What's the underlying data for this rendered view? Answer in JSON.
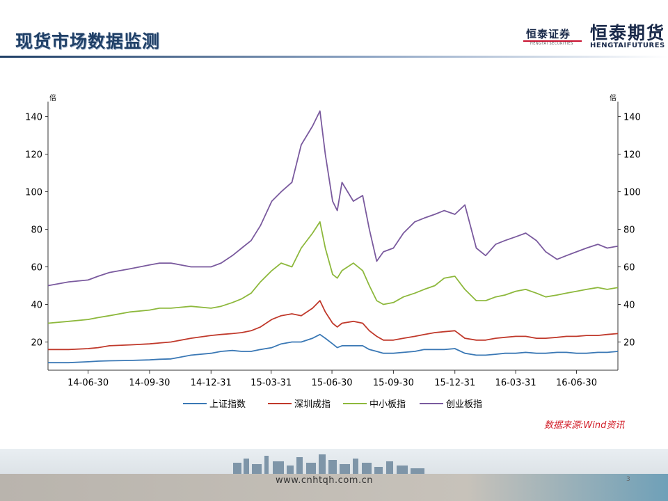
{
  "header": {
    "title": "现货市场数据监测",
    "logo_small_cn": "恒泰证券",
    "logo_small_en": "HENGTAI SECURITIES",
    "logo_large_cn": "恒泰期货",
    "logo_large_en": "HENGTAIFUTURES"
  },
  "footer": {
    "source": "数据来源:Wind资讯",
    "url": "www.cnhtqh.com.cn",
    "page_number": "3"
  },
  "colors": {
    "title": "#1f3f66",
    "source": "#d2202a"
  },
  "chart_data": {
    "type": "line",
    "title": "",
    "xlabel": "",
    "ylabel_left": "倍",
    "ylabel_right": "倍",
    "ylim": [
      5,
      148
    ],
    "yticks": [
      20,
      40,
      60,
      80,
      100,
      120,
      140
    ],
    "xlim": [
      "2014-05-01",
      "2016-08-31"
    ],
    "xticks": [
      "14-06-30",
      "14-09-30",
      "14-12-31",
      "15-03-31",
      "15-06-30",
      "15-09-30",
      "15-12-31",
      "16-03-31",
      "16-06-30"
    ],
    "grid": false,
    "legend_position": "bottom",
    "x": [
      "2014-05-01",
      "2014-06-01",
      "2014-06-30",
      "2014-07-15",
      "2014-08-01",
      "2014-09-01",
      "2014-09-30",
      "2014-10-15",
      "2014-11-01",
      "2014-12-01",
      "2014-12-31",
      "2015-01-15",
      "2015-02-01",
      "2015-02-15",
      "2015-03-01",
      "2015-03-15",
      "2015-04-01",
      "2015-04-15",
      "2015-05-01",
      "2015-05-15",
      "2015-06-01",
      "2015-06-12",
      "2015-06-20",
      "2015-07-01",
      "2015-07-08",
      "2015-07-15",
      "2015-08-01",
      "2015-08-15",
      "2015-08-25",
      "2015-09-05",
      "2015-09-15",
      "2015-09-30",
      "2015-10-15",
      "2015-11-01",
      "2015-11-15",
      "2015-12-01",
      "2015-12-15",
      "2015-12-31",
      "2016-01-15",
      "2016-02-01",
      "2016-02-15",
      "2016-03-01",
      "2016-03-15",
      "2016-03-31",
      "2016-04-15",
      "2016-05-01",
      "2016-05-15",
      "2016-06-01",
      "2016-06-15",
      "2016-06-30",
      "2016-07-15",
      "2016-08-01",
      "2016-08-15",
      "2016-08-31"
    ],
    "series": [
      {
        "name": "上证指数",
        "color": "#3a78b5",
        "values": [
          9,
          9,
          9.5,
          9.8,
          10,
          10.2,
          10.5,
          10.8,
          11,
          13,
          14,
          15,
          15.5,
          15,
          15,
          16,
          17,
          19,
          20,
          20,
          22,
          24,
          22,
          19,
          17,
          18,
          18,
          18,
          16,
          15,
          14,
          14,
          14.5,
          15,
          16,
          16,
          16,
          16.5,
          14,
          13,
          13,
          13.5,
          14,
          14,
          14.5,
          14,
          14,
          14.5,
          14.5,
          14,
          14,
          14.5,
          14.5,
          15
        ]
      },
      {
        "name": "深圳成指",
        "color": "#c0392b",
        "values": [
          16,
          16,
          16.5,
          17,
          18,
          18.5,
          19,
          19.5,
          20,
          22,
          23.5,
          24,
          24.5,
          25,
          26,
          28,
          32,
          34,
          35,
          34,
          38,
          42,
          36,
          30,
          28,
          30,
          31,
          30,
          26,
          23,
          21,
          21,
          22,
          23,
          24,
          25,
          25.5,
          26,
          22,
          21,
          21,
          22,
          22.5,
          23,
          23,
          22,
          22,
          22.5,
          23,
          23,
          23.5,
          23.5,
          24,
          24.5
        ]
      },
      {
        "name": "中小板指",
        "color": "#8db83c",
        "values": [
          30,
          31,
          32,
          33,
          34,
          36,
          37,
          38,
          38,
          39,
          38,
          39,
          41,
          43,
          46,
          52,
          58,
          62,
          60,
          70,
          78,
          84,
          70,
          56,
          54,
          58,
          62,
          58,
          50,
          42,
          40,
          41,
          44,
          46,
          48,
          50,
          54,
          55,
          48,
          42,
          42,
          44,
          45,
          47,
          48,
          46,
          44,
          45,
          46,
          47,
          48,
          49,
          48,
          49
        ]
      },
      {
        "name": "创业板指",
        "color": "#7a5a9e",
        "values": [
          50,
          52,
          53,
          55,
          57,
          59,
          61,
          62,
          62,
          60,
          60,
          62,
          66,
          70,
          74,
          82,
          95,
          100,
          105,
          125,
          135,
          143,
          120,
          95,
          90,
          105,
          95,
          98,
          80,
          63,
          68,
          70,
          78,
          84,
          86,
          88,
          90,
          88,
          93,
          70,
          66,
          72,
          74,
          76,
          78,
          74,
          68,
          64,
          66,
          68,
          70,
          72,
          70,
          71
        ]
      }
    ]
  }
}
